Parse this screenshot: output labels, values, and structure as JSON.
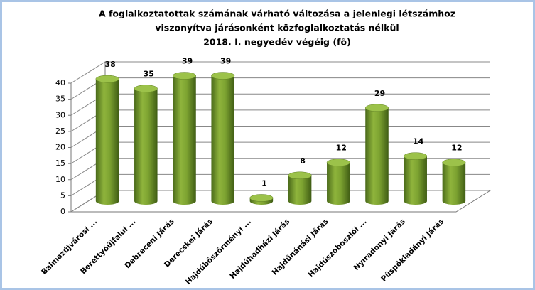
{
  "chart_data": {
    "type": "bar",
    "title": [
      "A foglalkoztatottak számának várható változása a jelenlegi létszámhoz",
      "viszonyítva járásonként közfoglalkoztatás nélkül",
      "2018. I. negyedév végéig (fő)"
    ],
    "categories": [
      "Balmazújvárosi ...",
      "Berettyóújfalui ...",
      "Debreceni Járás",
      "Derecskei Járás",
      "Hajdúböszörményi ...",
      "Hajdúhadházi Járás",
      "Hajdúnánási Járás",
      "Hajdúszoboszlói ...",
      "Nyíradonyi Járás",
      "Püspökladányi Járás"
    ],
    "values": [
      38,
      35,
      39,
      39,
      1,
      8,
      12,
      29,
      14,
      12
    ],
    "color": "#7da331",
    "ylim": [
      0,
      40
    ],
    "yticks": [
      0,
      5,
      10,
      15,
      20,
      25,
      30,
      35,
      40
    ],
    "grid": true
  }
}
